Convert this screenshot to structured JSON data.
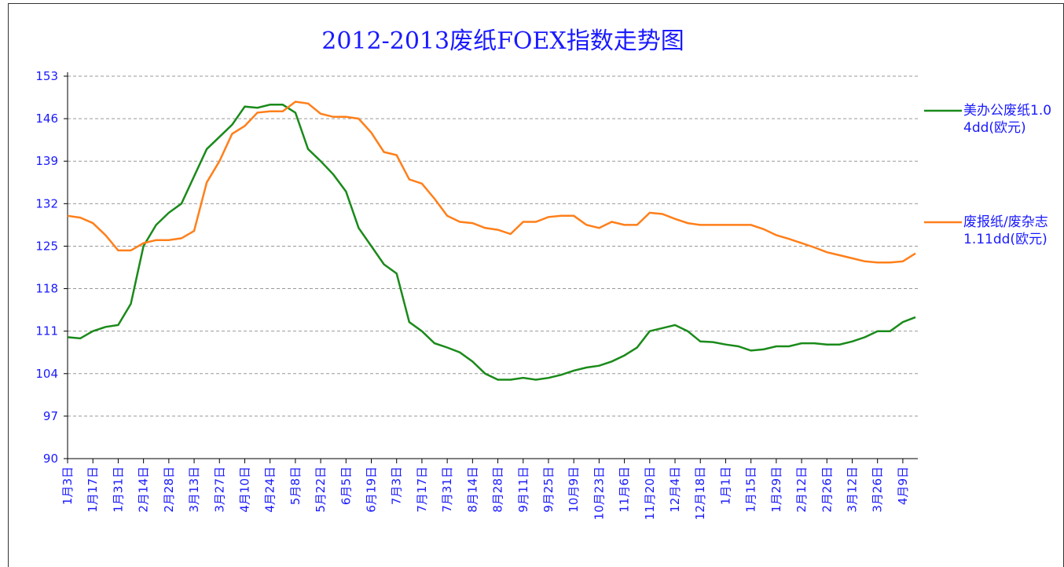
{
  "chart_data": {
    "type": "line",
    "title": "2012-2013废纸FOEX指数走势图",
    "categories": [
      "1月3日",
      null,
      "1月17日",
      null,
      "1月31日",
      null,
      "2月14日",
      null,
      "2月28日",
      null,
      "3月13日",
      null,
      "3月27日",
      null,
      "4月10日",
      null,
      "4月24日",
      null,
      "5月8日",
      null,
      "5月22日",
      null,
      "6月5日",
      null,
      "6月19日",
      null,
      "7月3日",
      null,
      "7月17日",
      null,
      "7月31日",
      null,
      "8月14日",
      null,
      "8月28日",
      null,
      "9月11日",
      null,
      "9月25日",
      null,
      "10月9日",
      null,
      "10月23日",
      null,
      "11月6日",
      null,
      "11月20日",
      null,
      "12月4日",
      null,
      "12月18日",
      null,
      "1月1日",
      null,
      "1月15日",
      null,
      "1月29日",
      null,
      "2月12日",
      null,
      "2月26日",
      null,
      "3月12日",
      null,
      "3月26日",
      null,
      "4月9日",
      null
    ],
    "series": [
      {
        "name": "美办公废纸1.04dd(欧元)",
        "color": "#1a8a1a",
        "values": [
          110,
          109.8,
          111,
          111.7,
          112,
          115.5,
          125,
          128.5,
          130.5,
          132,
          136.5,
          141,
          143,
          145,
          148,
          147.8,
          148.3,
          148.3,
          147,
          141,
          139,
          136.8,
          134,
          128,
          125,
          122,
          120.5,
          112.5,
          111,
          109,
          108.3,
          107.5,
          106,
          104,
          103,
          103,
          103.3,
          103,
          103.3,
          103.8,
          104.5,
          105,
          105.3,
          106,
          107,
          108.3,
          111,
          111.5,
          112,
          111,
          109.3,
          109.2,
          108.8,
          108.5,
          107.8,
          108,
          108.5,
          108.5,
          109,
          109,
          108.8,
          108.8,
          109.3,
          110,
          111,
          111,
          112.5,
          113.3
        ]
      },
      {
        "name": "废报纸/废杂志1.11dd(欧元)",
        "color": "#ff7f1a",
        "values": [
          130,
          129.7,
          128.8,
          126.8,
          124.3,
          124.3,
          125.5,
          126,
          126,
          126.3,
          127.5,
          135.5,
          139,
          143.5,
          144.8,
          147,
          147.2,
          147.2,
          148.8,
          148.5,
          146.8,
          146.3,
          146.3,
          146,
          143.7,
          140.5,
          140,
          136,
          135.3,
          132.8,
          130,
          129,
          128.8,
          128,
          127.7,
          127,
          129,
          129,
          129.8,
          130,
          130,
          128.5,
          128,
          129,
          128.5,
          128.5,
          130.5,
          130.3,
          129.5,
          128.8,
          128.5,
          128.5,
          128.5,
          128.5,
          128.5,
          127.8,
          126.8,
          126.2,
          125.5,
          124.8,
          124,
          123.5,
          123,
          122.5,
          122.3,
          122.3,
          122.5,
          123.8
        ]
      }
    ],
    "ylim": [
      90,
      153
    ],
    "yticks": [
      90,
      97,
      104,
      111,
      118,
      125,
      132,
      139,
      146,
      153
    ],
    "grid": true
  }
}
